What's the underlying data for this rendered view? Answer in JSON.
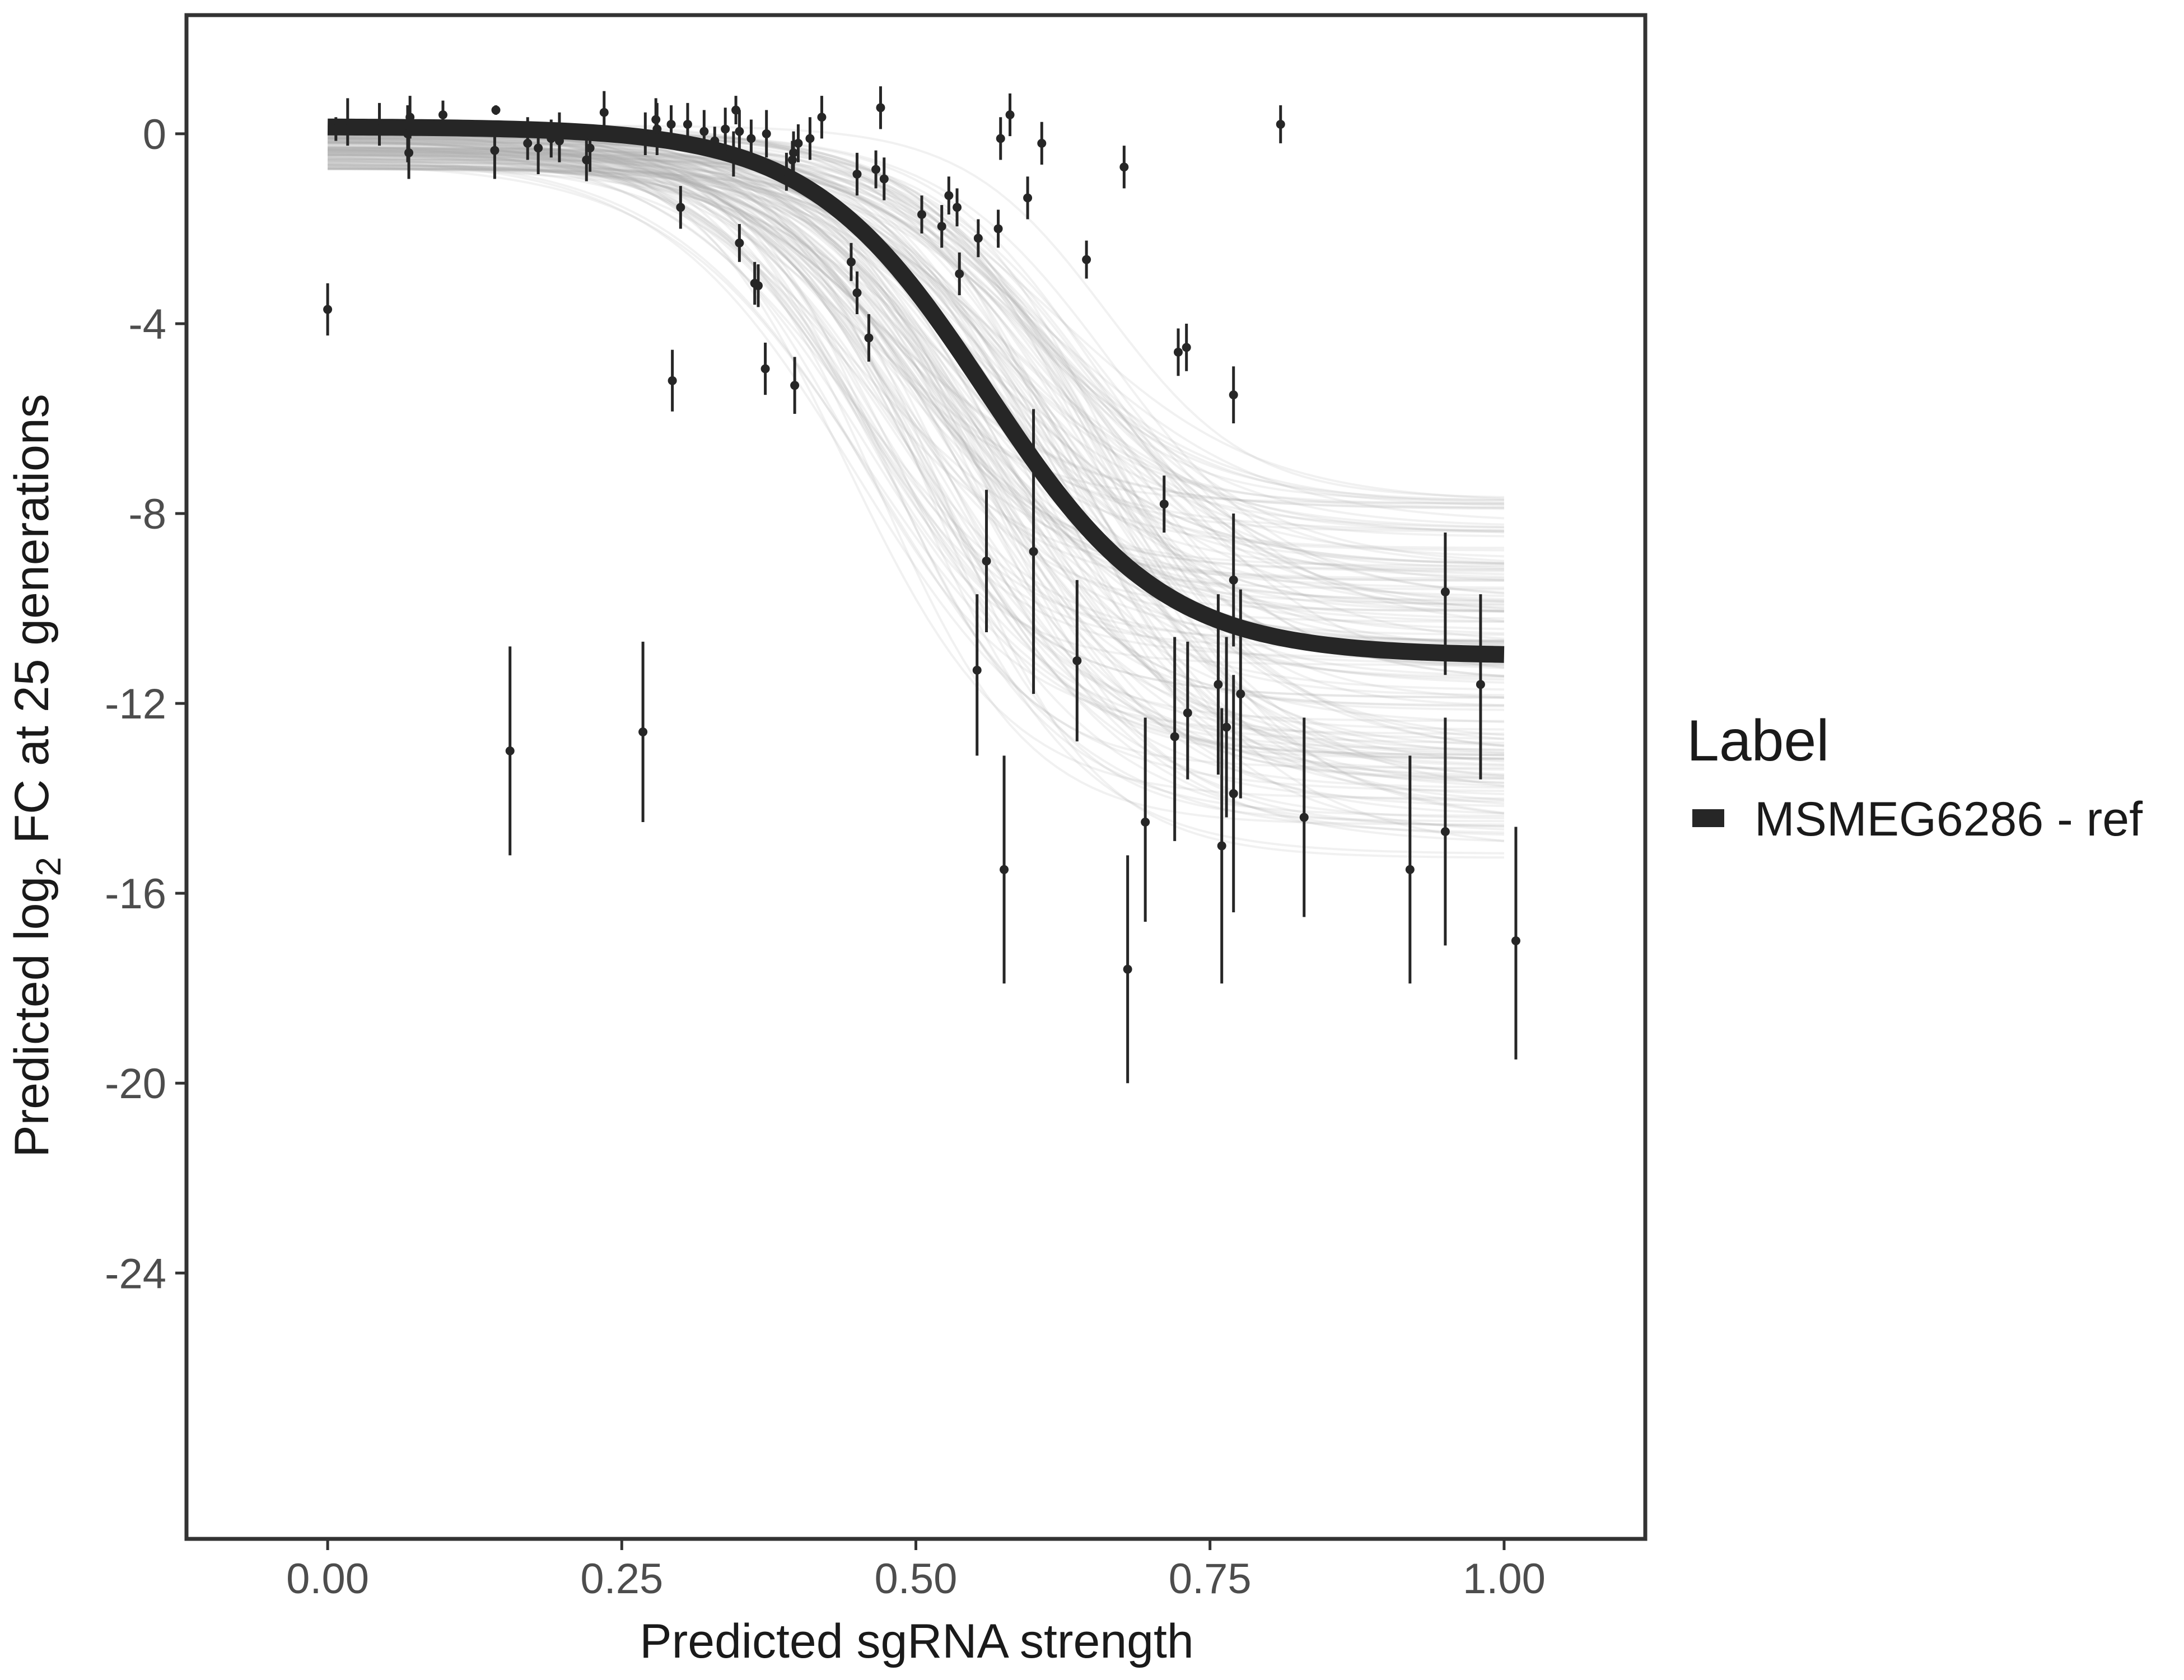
{
  "chart_data": {
    "type": "scatter",
    "xlabel": "Predicted sgRNA strength",
    "ylabel_parts": {
      "before": "Predicted  log",
      "subscript": "2",
      "after": " FC at 25 generations"
    },
    "xlim": [
      -0.12,
      1.12
    ],
    "ylim": [
      -29.6,
      2.5
    ],
    "x_ticks": [
      0.0,
      0.25,
      0.5,
      0.75,
      1.0
    ],
    "x_tick_labels": [
      "0.00",
      "0.25",
      "0.50",
      "0.75",
      "1.00"
    ],
    "y_ticks": [
      0,
      -4,
      -8,
      -12,
      -16,
      -20,
      -24
    ],
    "y_tick_labels": [
      "0",
      "-4",
      "-8",
      "-12",
      "-16",
      "-20",
      "-24"
    ],
    "grid": false,
    "legend": {
      "title": "Label",
      "entries": [
        "MSMEG6286 - ref"
      ],
      "position": "right"
    },
    "colors": {
      "fit": "#262626",
      "ensemble": "#a6a6a6",
      "points": "#262626",
      "frame": "#333333"
    },
    "fit_curve": {
      "model": "logistic",
      "upper": 0.15,
      "lower": -11.0,
      "midpoint": 0.56,
      "scale": 0.075,
      "x_range": [
        0.0,
        1.0
      ]
    },
    "ensemble_curves": {
      "count": 160,
      "x_range": [
        0.0,
        1.0
      ],
      "lower_range": [
        -15.3,
        -7.6
      ],
      "midpoint_range": [
        0.44,
        0.67
      ],
      "upper_range": [
        -0.75,
        0.25
      ]
    },
    "points": [
      {
        "x": 0.0,
        "y": -3.7,
        "lo": -4.25,
        "hi": -3.15
      },
      {
        "x": 0.007,
        "y": 0.1,
        "lo": -0.15,
        "hi": 0.35
      },
      {
        "x": 0.017,
        "y": 0.1,
        "lo": -0.25,
        "hi": 0.75
      },
      {
        "x": 0.044,
        "y": 0.1,
        "lo": -0.25,
        "hi": 0.65
      },
      {
        "x": 0.068,
        "y": 0.0,
        "lo": -0.6,
        "hi": 0.6
      },
      {
        "x": 0.069,
        "y": -0.4,
        "lo": -0.95,
        "hi": 0.15
      },
      {
        "x": 0.07,
        "y": 0.35,
        "lo": -0.1,
        "hi": 0.8
      },
      {
        "x": 0.098,
        "y": 0.4,
        "lo": 0.1,
        "hi": 0.7
      },
      {
        "x": 0.142,
        "y": -0.35,
        "lo": -0.95,
        "hi": 0.25
      },
      {
        "x": 0.143,
        "y": 0.5,
        "lo": 0.4,
        "hi": 0.6
      },
      {
        "x": 0.155,
        "y": -13.0,
        "lo": -15.2,
        "hi": -10.8
      },
      {
        "x": 0.17,
        "y": -0.2,
        "lo": -0.55,
        "hi": 0.35
      },
      {
        "x": 0.179,
        "y": -0.3,
        "lo": -0.85,
        "hi": 0.25
      },
      {
        "x": 0.19,
        "y": -0.1,
        "lo": -0.5,
        "hi": 0.3
      },
      {
        "x": 0.197,
        "y": -0.15,
        "lo": -0.6,
        "hi": 0.45
      },
      {
        "x": 0.22,
        "y": -0.55,
        "lo": -1.0,
        "hi": -0.1
      },
      {
        "x": 0.223,
        "y": -0.3,
        "lo": -0.8,
        "hi": 0.2
      },
      {
        "x": 0.235,
        "y": 0.45,
        "lo": 0.0,
        "hi": 0.9
      },
      {
        "x": 0.268,
        "y": -12.6,
        "lo": -14.5,
        "hi": -10.7
      },
      {
        "x": 0.27,
        "y": 0.0,
        "lo": -0.45,
        "hi": 0.45
      },
      {
        "x": 0.279,
        "y": 0.3,
        "lo": -0.15,
        "hi": 0.75
      },
      {
        "x": 0.28,
        "y": 0.1,
        "lo": -0.45,
        "hi": 0.65
      },
      {
        "x": 0.292,
        "y": 0.2,
        "lo": -0.2,
        "hi": 0.6
      },
      {
        "x": 0.293,
        "y": -5.2,
        "lo": -5.85,
        "hi": -4.55
      },
      {
        "x": 0.3,
        "y": -1.55,
        "lo": -2.0,
        "hi": -1.1
      },
      {
        "x": 0.306,
        "y": 0.2,
        "lo": -0.25,
        "hi": 0.65
      },
      {
        "x": 0.32,
        "y": 0.05,
        "lo": -0.4,
        "hi": 0.5
      },
      {
        "x": 0.329,
        "y": -0.15,
        "lo": -0.45,
        "hi": 0.15
      },
      {
        "x": 0.338,
        "y": 0.1,
        "lo": -0.35,
        "hi": 0.55
      },
      {
        "x": 0.345,
        "y": -0.45,
        "lo": -0.9,
        "hi": 0.05
      },
      {
        "x": 0.347,
        "y": 0.5,
        "lo": 0.2,
        "hi": 0.8
      },
      {
        "x": 0.35,
        "y": 0.05,
        "lo": -0.4,
        "hi": 0.5
      },
      {
        "x": 0.35,
        "y": -2.3,
        "lo": -2.7,
        "hi": -1.9
      },
      {
        "x": 0.36,
        "y": -0.1,
        "lo": -0.5,
        "hi": 0.3
      },
      {
        "x": 0.363,
        "y": -3.15,
        "lo": -3.6,
        "hi": -2.7
      },
      {
        "x": 0.366,
        "y": -3.2,
        "lo": -3.65,
        "hi": -2.75
      },
      {
        "x": 0.372,
        "y": -4.95,
        "lo": -5.5,
        "hi": -4.4
      },
      {
        "x": 0.373,
        "y": 0.0,
        "lo": -0.5,
        "hi": 0.5
      },
      {
        "x": 0.39,
        "y": -0.8,
        "lo": -1.2,
        "hi": -0.4
      },
      {
        "x": 0.395,
        "y": -0.55,
        "lo": -0.95,
        "hi": -0.15
      },
      {
        "x": 0.396,
        "y": -0.4,
        "lo": -0.85,
        "hi": 0.05
      },
      {
        "x": 0.397,
        "y": -5.3,
        "lo": -5.9,
        "hi": -4.7
      },
      {
        "x": 0.4,
        "y": -0.2,
        "lo": -0.6,
        "hi": 0.2
      },
      {
        "x": 0.41,
        "y": -0.1,
        "lo": -0.55,
        "hi": 0.35
      },
      {
        "x": 0.42,
        "y": 0.35,
        "lo": -0.1,
        "hi": 0.8
      },
      {
        "x": 0.445,
        "y": -2.7,
        "lo": -3.1,
        "hi": -2.3
      },
      {
        "x": 0.45,
        "y": -0.85,
        "lo": -1.3,
        "hi": -0.4
      },
      {
        "x": 0.45,
        "y": -3.35,
        "lo": -3.8,
        "hi": -2.9
      },
      {
        "x": 0.46,
        "y": -4.3,
        "lo": -4.8,
        "hi": -3.8
      },
      {
        "x": 0.466,
        "y": -0.75,
        "lo": -1.15,
        "hi": -0.35
      },
      {
        "x": 0.47,
        "y": 0.55,
        "lo": 0.1,
        "hi": 1.0
      },
      {
        "x": 0.473,
        "y": -0.95,
        "lo": -1.4,
        "hi": -0.5
      },
      {
        "x": 0.505,
        "y": -1.7,
        "lo": -2.1,
        "hi": -1.3
      },
      {
        "x": 0.522,
        "y": -1.95,
        "lo": -2.4,
        "hi": -1.5
      },
      {
        "x": 0.528,
        "y": -1.3,
        "lo": -1.7,
        "hi": -0.9
      },
      {
        "x": 0.535,
        "y": -1.55,
        "lo": -1.95,
        "hi": -1.15
      },
      {
        "x": 0.537,
        "y": -2.95,
        "lo": -3.4,
        "hi": -2.5
      },
      {
        "x": 0.552,
        "y": -11.3,
        "lo": -13.1,
        "hi": -9.7
      },
      {
        "x": 0.553,
        "y": -2.2,
        "lo": -2.6,
        "hi": -1.8
      },
      {
        "x": 0.56,
        "y": -9.0,
        "lo": -10.5,
        "hi": -7.5
      },
      {
        "x": 0.57,
        "y": -2.0,
        "lo": -2.4,
        "hi": -1.6
      },
      {
        "x": 0.572,
        "y": -0.1,
        "lo": -0.55,
        "hi": 0.35
      },
      {
        "x": 0.575,
        "y": -15.5,
        "lo": -17.9,
        "hi": -13.1
      },
      {
        "x": 0.58,
        "y": 0.4,
        "lo": -0.05,
        "hi": 0.85
      },
      {
        "x": 0.595,
        "y": -1.35,
        "lo": -1.8,
        "hi": -0.9
      },
      {
        "x": 0.6,
        "y": -8.8,
        "lo": -11.8,
        "hi": -5.8
      },
      {
        "x": 0.607,
        "y": -0.2,
        "lo": -0.65,
        "hi": 0.25
      },
      {
        "x": 0.637,
        "y": -11.1,
        "lo": -12.8,
        "hi": -9.4
      },
      {
        "x": 0.645,
        "y": -2.65,
        "lo": -3.05,
        "hi": -2.25
      },
      {
        "x": 0.677,
        "y": -0.7,
        "lo": -1.15,
        "hi": -0.25
      },
      {
        "x": 0.68,
        "y": -17.6,
        "lo": -20.0,
        "hi": -15.2
      },
      {
        "x": 0.695,
        "y": -14.5,
        "lo": -16.6,
        "hi": -12.3
      },
      {
        "x": 0.711,
        "y": -7.8,
        "lo": -8.4,
        "hi": -7.2
      },
      {
        "x": 0.72,
        "y": -12.7,
        "lo": -14.9,
        "hi": -10.6
      },
      {
        "x": 0.723,
        "y": -4.6,
        "lo": -5.1,
        "hi": -4.1
      },
      {
        "x": 0.73,
        "y": -4.5,
        "lo": -5.0,
        "hi": -4.0
      },
      {
        "x": 0.731,
        "y": -12.2,
        "lo": -13.6,
        "hi": -10.7
      },
      {
        "x": 0.757,
        "y": -11.6,
        "lo": -13.5,
        "hi": -9.7
      },
      {
        "x": 0.76,
        "y": -15.0,
        "lo": -17.9,
        "hi": -12.1
      },
      {
        "x": 0.764,
        "y": -12.5,
        "lo": -14.4,
        "hi": -10.6
      },
      {
        "x": 0.77,
        "y": -9.4,
        "lo": -10.8,
        "hi": -8.0
      },
      {
        "x": 0.77,
        "y": -13.9,
        "lo": -16.4,
        "hi": -11.4
      },
      {
        "x": 0.77,
        "y": -5.5,
        "lo": -6.1,
        "hi": -4.9
      },
      {
        "x": 0.776,
        "y": -11.8,
        "lo": -14.0,
        "hi": -9.6
      },
      {
        "x": 0.81,
        "y": 0.2,
        "lo": -0.2,
        "hi": 0.6
      },
      {
        "x": 0.83,
        "y": -14.4,
        "lo": -16.5,
        "hi": -12.3
      },
      {
        "x": 0.92,
        "y": -15.5,
        "lo": -17.9,
        "hi": -13.1
      },
      {
        "x": 0.95,
        "y": -9.65,
        "lo": -11.4,
        "hi": -8.4
      },
      {
        "x": 0.95,
        "y": -14.7,
        "lo": -17.1,
        "hi": -12.3
      },
      {
        "x": 0.98,
        "y": -11.6,
        "lo": -13.6,
        "hi": -9.7
      },
      {
        "x": 1.01,
        "y": -17.0,
        "lo": -19.5,
        "hi": -14.6
      }
    ]
  }
}
